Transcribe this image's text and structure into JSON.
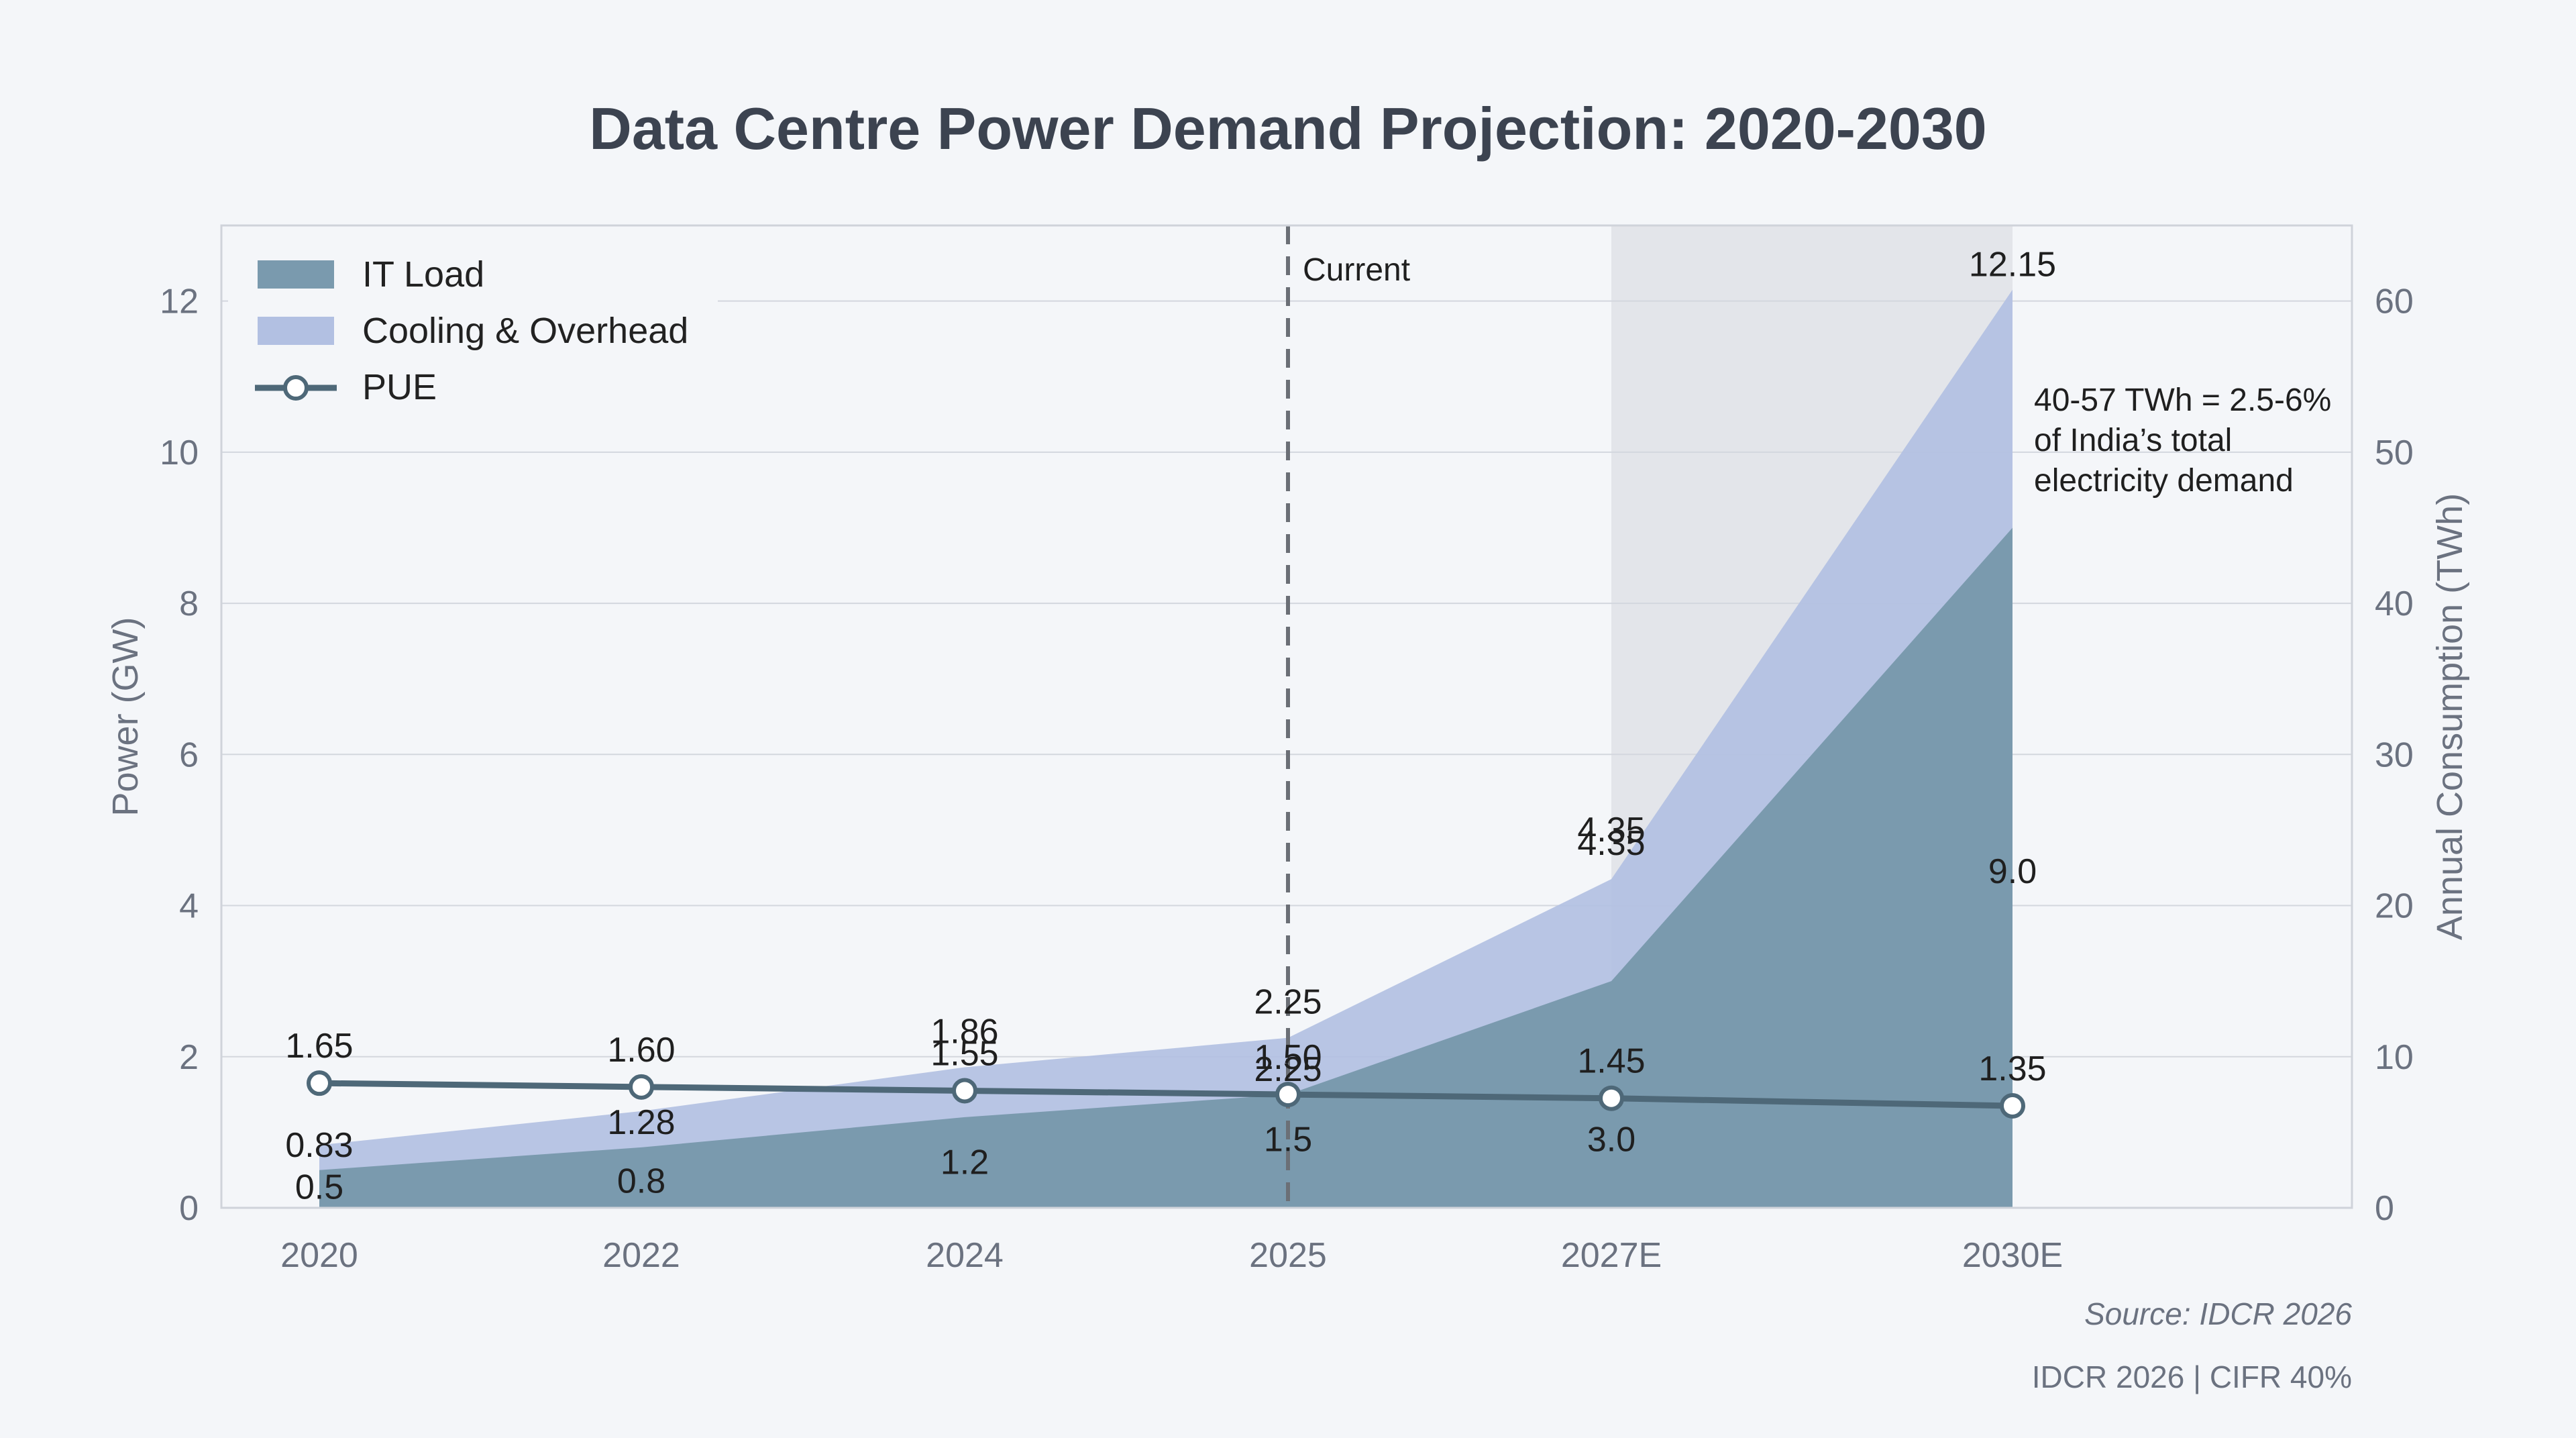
{
  "chart_data": {
    "type": "area",
    "title": "Data Centre Power Demand Projection: 2020-2030",
    "categories": [
      "2020",
      "2022",
      "2024",
      "2025",
      "2027E",
      "2030E"
    ],
    "ylabel": "Power (GW)",
    "ylabel_right": "Annual Consumption (TWh)",
    "ylim": [
      0,
      13
    ],
    "yticks": [
      0,
      2,
      4,
      6,
      8,
      10,
      12
    ],
    "ylim_right": [
      0,
      65
    ],
    "yticks_right": [
      0,
      10,
      20,
      30,
      40,
      50,
      60
    ],
    "grid": true,
    "legend_position": "top-left",
    "series": [
      {
        "name": "IT Load",
        "kind": "area",
        "color": "#7a9aae",
        "values": [
          0.5,
          0.8,
          1.2,
          1.5,
          3.0,
          9.0
        ],
        "labels": [
          "0.5",
          "0.8",
          "1.2",
          "1.5",
          "3.0",
          "9.0"
        ]
      },
      {
        "name": "Cooling & Overhead",
        "kind": "stacked-area",
        "color": "#b2c0e2",
        "values": [
          0.83,
          1.28,
          1.86,
          2.25,
          4.35,
          12.15
        ],
        "labels": [
          "0.83",
          "1.28",
          "1.86",
          "2.25",
          "4.35",
          "12.15"
        ],
        "midlabels": [
          "",
          "",
          "",
          "2.25",
          "4.35",
          ""
        ]
      },
      {
        "name": "PUE",
        "kind": "line",
        "color": "#4e6878",
        "values": [
          1.65,
          1.6,
          1.55,
          1.5,
          1.45,
          1.35
        ],
        "labels": [
          "1.65",
          "1.60",
          "1.55",
          "1.50",
          "1.45",
          "1.35"
        ]
      }
    ],
    "annotations": {
      "current_label": "Current",
      "current_at": "2025",
      "projection_start": "2027E",
      "note_lines": [
        "40-57 TWh = 2.5-6%",
        "of India’s total",
        "electricity demand"
      ]
    },
    "source": "Source: IDCR 2026",
    "footer": "IDCR 2026 | CIFR 40%"
  }
}
